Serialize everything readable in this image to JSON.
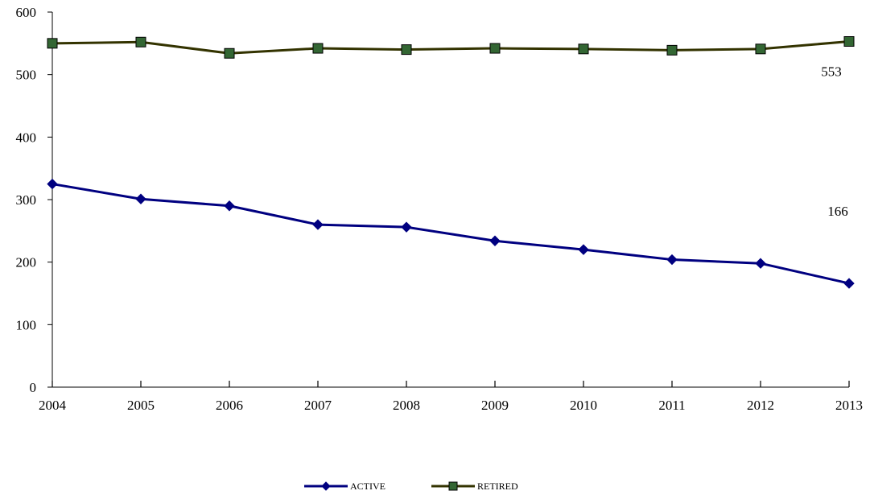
{
  "chart_data": {
    "type": "line",
    "x": [
      "2004",
      "2005",
      "2006",
      "2007",
      "2008",
      "2009",
      "2010",
      "2011",
      "2012",
      "2013"
    ],
    "ylim": [
      0,
      600
    ],
    "y_ticks": [
      "0",
      "100",
      "200",
      "300",
      "400",
      "500",
      "600"
    ],
    "grid": false,
    "legend_position": "bottom-center",
    "series": [
      {
        "name": "ACTIVE",
        "color": "#000080",
        "marker": "diamond",
        "values": [
          325,
          301,
          290,
          260,
          256,
          234,
          220,
          204,
          198,
          166
        ]
      },
      {
        "name": "RETIRED",
        "color": "#333300",
        "marker_fill": "#336633",
        "marker": "square",
        "values": [
          550,
          552,
          534,
          542,
          540,
          542,
          541,
          539,
          541,
          553
        ]
      }
    ],
    "data_labels": [
      {
        "series": 1,
        "text": "553"
      },
      {
        "series": 0,
        "text": "166"
      }
    ]
  }
}
